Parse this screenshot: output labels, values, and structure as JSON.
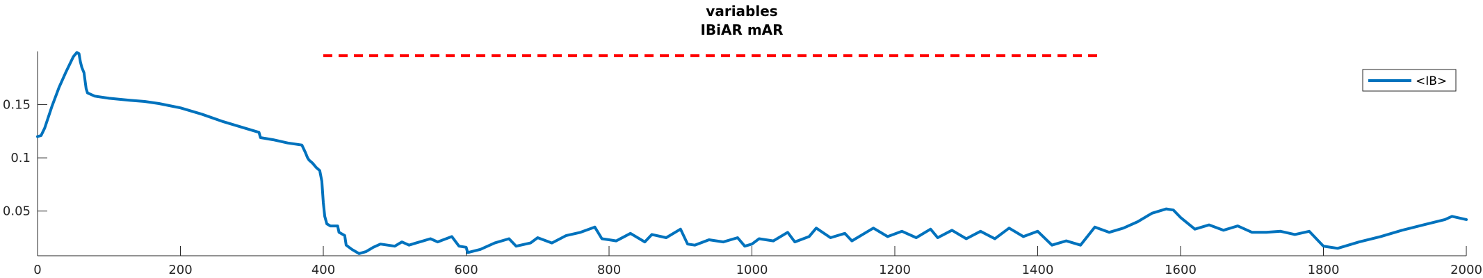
{
  "chart_data": {
    "type": "line",
    "title": [
      "variables",
      "IBiAR mAR"
    ],
    "xlim": [
      0,
      2000
    ],
    "ylim": [
      0.008,
      0.2
    ],
    "x_ticks": [
      0,
      200,
      400,
      600,
      800,
      1000,
      1200,
      1400,
      1600,
      1800,
      2000
    ],
    "x_tick_labels": [
      "0",
      "200",
      "400",
      "600",
      "800",
      "1000",
      "1200",
      "1400",
      "1600",
      "1800",
      "2000"
    ],
    "y_ticks": [
      0.05,
      0.1,
      0.15
    ],
    "y_tick_labels": [
      "0.05",
      "0.1",
      "0.15"
    ],
    "grid": false,
    "legend_position": "top-right",
    "reference_line": {
      "x_start": 400,
      "x_end": 1490,
      "y": 0.196,
      "color": "#ff0000",
      "style": "dashed"
    },
    "series": [
      {
        "name": "<IB>",
        "color": "#0072bd",
        "x": [
          0,
          5,
          10,
          20,
          30,
          40,
          50,
          55,
          58,
          60,
          62,
          65,
          68,
          70,
          80,
          100,
          130,
          150,
          170,
          200,
          230,
          260,
          290,
          310,
          312,
          330,
          350,
          370,
          375,
          378,
          380,
          385,
          390,
          395,
          398,
          400,
          402,
          405,
          410,
          420,
          422,
          430,
          432,
          440,
          450,
          460,
          470,
          480,
          500,
          510,
          520,
          530,
          540,
          550,
          560,
          580,
          590,
          600,
          602,
          620,
          640,
          660,
          670,
          690,
          700,
          720,
          740,
          760,
          780,
          790,
          800,
          810,
          830,
          850,
          860,
          880,
          900,
          910,
          920,
          940,
          960,
          980,
          990,
          1000,
          1010,
          1030,
          1050,
          1060,
          1080,
          1090,
          1110,
          1130,
          1140,
          1160,
          1170,
          1190,
          1210,
          1230,
          1250,
          1260,
          1280,
          1300,
          1320,
          1340,
          1360,
          1380,
          1400,
          1420,
          1440,
          1460,
          1480,
          1500,
          1520,
          1540,
          1560,
          1580,
          1590,
          1600,
          1620,
          1640,
          1660,
          1680,
          1700,
          1720,
          1740,
          1760,
          1780,
          1800,
          1820,
          1850,
          1880,
          1910,
          1940,
          1970,
          1980,
          2000
        ],
        "y": [
          0.12,
          0.121,
          0.128,
          0.148,
          0.166,
          0.181,
          0.195,
          0.199,
          0.198,
          0.19,
          0.185,
          0.18,
          0.165,
          0.161,
          0.158,
          0.156,
          0.154,
          0.153,
          0.151,
          0.147,
          0.141,
          0.134,
          0.128,
          0.124,
          0.119,
          0.117,
          0.114,
          0.112,
          0.105,
          0.1,
          0.098,
          0.095,
          0.091,
          0.088,
          0.078,
          0.058,
          0.045,
          0.038,
          0.036,
          0.036,
          0.03,
          0.027,
          0.018,
          0.014,
          0.01,
          0.012,
          0.016,
          0.019,
          0.017,
          0.021,
          0.018,
          0.02,
          0.022,
          0.024,
          0.021,
          0.026,
          0.017,
          0.016,
          0.011,
          0.014,
          0.02,
          0.024,
          0.017,
          0.02,
          0.025,
          0.02,
          0.027,
          0.03,
          0.035,
          0.024,
          0.023,
          0.022,
          0.029,
          0.021,
          0.028,
          0.025,
          0.033,
          0.019,
          0.018,
          0.023,
          0.021,
          0.025,
          0.017,
          0.019,
          0.024,
          0.022,
          0.03,
          0.021,
          0.026,
          0.034,
          0.025,
          0.029,
          0.022,
          0.03,
          0.034,
          0.026,
          0.031,
          0.025,
          0.033,
          0.025,
          0.032,
          0.024,
          0.031,
          0.024,
          0.034,
          0.026,
          0.031,
          0.018,
          0.022,
          0.018,
          0.035,
          0.03,
          0.034,
          0.04,
          0.048,
          0.052,
          0.051,
          0.044,
          0.033,
          0.037,
          0.032,
          0.036,
          0.03,
          0.03,
          0.031,
          0.028,
          0.031,
          0.017,
          0.015,
          0.021,
          0.026,
          0.032,
          0.037,
          0.042,
          0.045,
          0.042
        ]
      }
    ]
  }
}
